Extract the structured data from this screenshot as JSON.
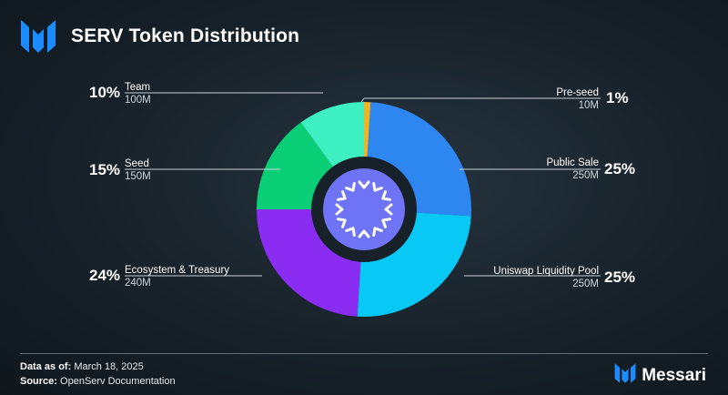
{
  "header": {
    "title": "SERV Token Distribution"
  },
  "footer": {
    "date_label": "Data as of:",
    "date_value": "March 18, 2025",
    "source_label": "Source:",
    "source_value": "OpenServ Documentation",
    "brand": "Messari"
  },
  "colors": {
    "background": "#172129",
    "brand_blue": "#1a8cff",
    "center_disc": "#6f73f5"
  },
  "chart_data": {
    "type": "pie",
    "title": "SERV Token Distribution",
    "slices": [
      {
        "name": "Pre-seed",
        "percent": "1%",
        "amount": "10M",
        "value": 1,
        "color": "#f0b323"
      },
      {
        "name": "Public Sale",
        "percent": "25%",
        "amount": "250M",
        "value": 25,
        "color": "#2e86f0"
      },
      {
        "name": "Uniswap Liquidity Pool",
        "percent": "25%",
        "amount": "250M",
        "value": 25,
        "color": "#08c8f5"
      },
      {
        "name": "Ecosystem & Treasury",
        "percent": "24%",
        "amount": "240M",
        "value": 24,
        "color": "#8b2cf3"
      },
      {
        "name": "Seed",
        "percent": "15%",
        "amount": "150M",
        "value": 15,
        "color": "#0bcf76"
      },
      {
        "name": "Team",
        "percent": "10%",
        "amount": "100M",
        "value": 10,
        "color": "#3ef0c1"
      }
    ]
  }
}
